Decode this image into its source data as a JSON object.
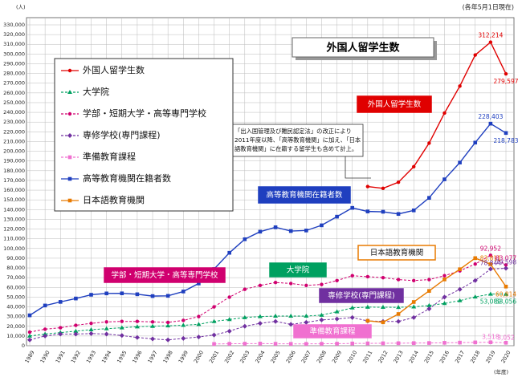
{
  "chart_data": {
    "type": "line",
    "title": "外国人留学生数",
    "y_unit": "(人)",
    "date_note": "(各年5月1日現在)",
    "x_unit": "(年度)",
    "categories": [
      "1989",
      "1990",
      "1991",
      "1992",
      "1993",
      "1994",
      "1995",
      "1996",
      "1997",
      "1998",
      "1999",
      "2000",
      "2001",
      "2002",
      "2003",
      "2004",
      "2005",
      "2006",
      "2007",
      "2008",
      "2009",
      "2010",
      "2011",
      "2012",
      "2013",
      "2014",
      "2015",
      "2016",
      "2017",
      "2018",
      "2019",
      "2020"
    ],
    "ylim": [
      0,
      330000
    ],
    "yticks": [
      0,
      {
        "value": 10000,
        "label": "10,000"
      },
      {
        "value": 20000,
        "label": "20,000"
      },
      {
        "value": 30000,
        "label": "30,000"
      },
      {
        "value": 40000,
        "label": "40,000"
      },
      {
        "value": 50000,
        "label": "50,000"
      },
      {
        "value": 60000,
        "label": "60,000"
      },
      {
        "value": 70000,
        "label": "70,000"
      },
      {
        "value": 80000,
        "label": "80,000"
      },
      {
        "value": 90000,
        "label": "90,000"
      },
      {
        "value": 100000,
        "label": "100,000"
      },
      {
        "value": 110000,
        "label": "110,000"
      },
      {
        "value": 120000,
        "label": "120,000"
      },
      {
        "value": 130000,
        "label": "130,000"
      },
      {
        "value": 140000,
        "label": "140,000"
      },
      {
        "value": 150000,
        "label": "150,000"
      },
      {
        "value": 160000,
        "label": "160,000"
      },
      {
        "value": 170000,
        "label": "170,000"
      },
      {
        "value": 180000,
        "label": "180,000"
      },
      {
        "value": 190000,
        "label": "190,000"
      },
      {
        "value": 200000,
        "label": "200,000"
      },
      {
        "value": 210000,
        "label": "210,000"
      },
      {
        "value": 220000,
        "label": "220,000"
      },
      {
        "value": 230000,
        "label": "230,000"
      },
      {
        "value": 240000,
        "label": "240,000"
      },
      {
        "value": 250000,
        "label": "250,000"
      },
      {
        "value": 260000,
        "label": "260,000"
      },
      {
        "value": 270000,
        "label": "270,000"
      },
      {
        "value": 280000,
        "label": "280,000"
      },
      {
        "value": 290000,
        "label": "290,000"
      },
      {
        "value": 300000,
        "label": "300,000"
      },
      {
        "value": 310000,
        "label": "310,000"
      },
      {
        "value": 320000,
        "label": "320,000"
      },
      {
        "value": 330000,
        "label": "330,000"
      }
    ],
    "grid": true,
    "series": [
      {
        "name": "外国人留学生数",
        "color": "#e00000",
        "marker": "circle",
        "dash": false,
        "values": [
          null,
          null,
          null,
          null,
          null,
          null,
          null,
          null,
          null,
          null,
          null,
          null,
          null,
          null,
          null,
          null,
          null,
          null,
          null,
          null,
          null,
          null,
          163697,
          161848,
          168145,
          184155,
          208379,
          239287,
          267042,
          298980,
          312214,
          279597
        ],
        "value_labels": [
          null,
          null,
          null,
          null,
          null,
          null,
          null,
          null,
          null,
          null,
          null,
          null,
          null,
          null,
          null,
          null,
          null,
          null,
          null,
          null,
          null,
          null,
          null,
          null,
          null,
          null,
          null,
          null,
          null,
          null,
          "312,214",
          "279,597"
        ]
      },
      {
        "name": "大学院",
        "color": "#00a060",
        "marker": "triangle",
        "dash": true,
        "values": [
          10000,
          12000,
          13500,
          15000,
          16500,
          17500,
          18500,
          19500,
          20000,
          20500,
          21000,
          22000,
          25000,
          27000,
          29000,
          30000,
          30500,
          30500,
          30500,
          31500,
          35000,
          39000,
          39700,
          39600,
          39500,
          40000,
          41400,
          43500,
          46400,
          50200,
          53089,
          53056
        ],
        "value_labels": [
          null,
          null,
          null,
          null,
          null,
          null,
          null,
          null,
          null,
          null,
          null,
          null,
          null,
          null,
          null,
          null,
          null,
          null,
          null,
          null,
          null,
          null,
          null,
          null,
          null,
          null,
          null,
          null,
          null,
          null,
          "53,089",
          "53,056"
        ]
      },
      {
        "name": "学部・短期大学・高等専門学校",
        "color": "#d0006f",
        "marker": "circle",
        "dash": true,
        "values": [
          14000,
          17000,
          18500,
          21000,
          23000,
          24500,
          25000,
          25000,
          24500,
          24000,
          26000,
          30000,
          40000,
          50000,
          58000,
          62000,
          65000,
          64000,
          62000,
          63000,
          67000,
          72000,
          71000,
          70000,
          68000,
          67000,
          68000,
          72000,
          77000,
          84000,
          92952,
          83077
        ],
        "value_labels": [
          null,
          null,
          null,
          null,
          null,
          null,
          null,
          null,
          null,
          null,
          null,
          null,
          null,
          null,
          null,
          null,
          null,
          null,
          null,
          null,
          null,
          null,
          null,
          null,
          null,
          null,
          null,
          null,
          null,
          null,
          "92,952",
          "83,077"
        ]
      },
      {
        "name": "専修学校(専門課程)",
        "color": "#7030a0",
        "marker": "diamond",
        "dash": true,
        "values": [
          6000,
          10000,
          12000,
          12000,
          12500,
          12000,
          10500,
          8500,
          7000,
          6000,
          7500,
          9000,
          11000,
          15000,
          20000,
          23000,
          25000,
          22000,
          24000,
          26500,
          27500,
          29000,
          25500,
          25000,
          25000,
          29000,
          38000,
          50000,
          58000,
          67000,
          78844,
          79598
        ],
        "value_labels": [
          null,
          null,
          null,
          null,
          null,
          null,
          null,
          null,
          null,
          null,
          null,
          null,
          null,
          null,
          null,
          null,
          null,
          null,
          null,
          null,
          null,
          null,
          null,
          null,
          null,
          null,
          null,
          null,
          null,
          null,
          "78,844",
          "79,598"
        ]
      },
      {
        "name": "準備教育課程",
        "color": "#f070d0",
        "marker": "square",
        "dash": true,
        "values": [
          null,
          null,
          null,
          null,
          null,
          null,
          null,
          null,
          null,
          null,
          null,
          null,
          1800,
          2000,
          2100,
          2200,
          2000,
          1900,
          1900,
          2000,
          2100,
          2300,
          2400,
          2500,
          2600,
          2700,
          2800,
          3000,
          3200,
          3400,
          3518,
          3052
        ],
        "value_labels": [
          null,
          null,
          null,
          null,
          null,
          null,
          null,
          null,
          null,
          null,
          null,
          null,
          null,
          null,
          null,
          null,
          null,
          null,
          null,
          null,
          null,
          null,
          null,
          null,
          null,
          null,
          null,
          null,
          null,
          null,
          "3,518",
          "3,052"
        ]
      },
      {
        "name": "高等教育機関在籍者数",
        "color": "#1f3fbf",
        "marker": "square",
        "dash": false,
        "values": [
          31251,
          41347,
          45066,
          48561,
          52405,
          53787,
          53847,
          52921,
          51047,
          51298,
          55755,
          64011,
          78812,
          95550,
          109508,
          117302,
          121812,
          117927,
          118498,
          123829,
          132720,
          141774,
          138075,
          137756,
          135519,
          139185,
          152062,
          171122,
          188384,
          208901,
          228403,
          218783
        ],
        "value_labels": [
          null,
          null,
          null,
          null,
          null,
          null,
          null,
          null,
          null,
          null,
          null,
          null,
          null,
          null,
          null,
          null,
          null,
          null,
          null,
          null,
          null,
          null,
          null,
          null,
          null,
          null,
          null,
          null,
          null,
          null,
          "228,403",
          "218,783"
        ]
      },
      {
        "name": "日本語教育機関",
        "color": "#e87a00",
        "marker": "square",
        "dash": false,
        "values": [
          null,
          null,
          null,
          null,
          null,
          null,
          null,
          null,
          null,
          null,
          null,
          null,
          null,
          null,
          null,
          null,
          null,
          null,
          null,
          null,
          null,
          null,
          25622,
          24092,
          32626,
          44970,
          56317,
          68165,
          78658,
          90079,
          83811,
          60814
        ],
        "value_labels": [
          null,
          null,
          null,
          null,
          null,
          null,
          null,
          null,
          null,
          null,
          null,
          null,
          null,
          null,
          null,
          null,
          null,
          null,
          null,
          null,
          null,
          null,
          null,
          null,
          null,
          null,
          null,
          null,
          null,
          null,
          "83,811",
          "60,814"
        ]
      }
    ],
    "annotations": [
      "外国人留学生数",
      "高等教育機関在籍者数",
      "学部・短期大学・高等専門学校",
      "大学院",
      "日本語教育機関",
      "専修学校(専門課程)",
      "準備教育課程"
    ],
    "note": [
      "「出入国管理及び難民認定法」の改正により",
      "2011年度以降、「高等教育機関」に加え、「日本",
      "語教育機関」に在籍する留学生も含めて計上。"
    ]
  }
}
